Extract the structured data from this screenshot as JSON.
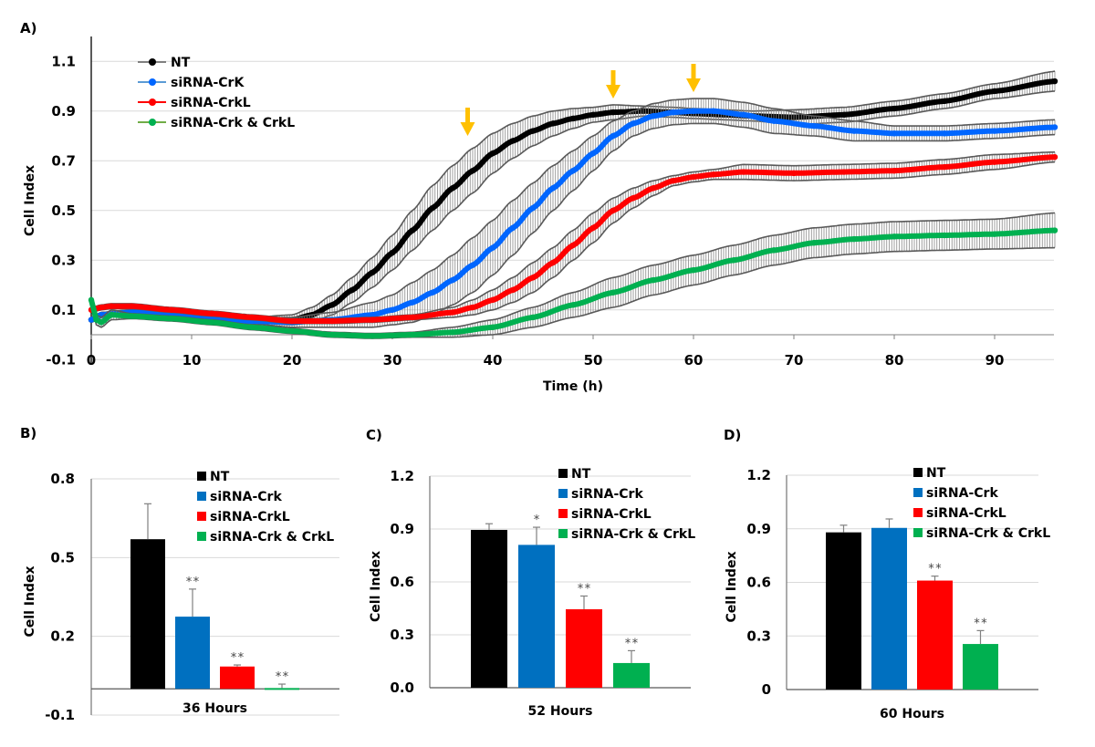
{
  "chart_data": [
    {
      "panel": "A)",
      "type": "line",
      "title": "",
      "xlabel": "Time (h)",
      "ylabel": "Cell Index",
      "xlim": [
        0,
        96
      ],
      "ylim": [
        -0.1,
        1.2
      ],
      "xticks": [
        "0",
        "10",
        "20",
        "30",
        "40",
        "50",
        "60",
        "70",
        "80",
        "90"
      ],
      "yticks": [
        "1.1",
        "0.9",
        "0.7",
        "0.5",
        "0.3",
        "0.1",
        "-0.1"
      ],
      "grid": true,
      "legend_position": "top-left",
      "error_bars": true,
      "annotations": [
        {
          "type": "arrow",
          "x": 37.5,
          "color": "#FFC000"
        },
        {
          "type": "arrow",
          "x": 52,
          "color": "#FFC000"
        },
        {
          "type": "arrow",
          "x": 60,
          "color": "#FFC000"
        }
      ],
      "series": [
        {
          "name": "NT",
          "color": "#000000",
          "legend_line_color": "#808080",
          "x": [
            0,
            1,
            4,
            8,
            12,
            16,
            20,
            22,
            24,
            26,
            28,
            30,
            32,
            34,
            36,
            38,
            40,
            42,
            44,
            46,
            48,
            50,
            52,
            55,
            58,
            60,
            63,
            66,
            70,
            75,
            80,
            85,
            90,
            96
          ],
          "y": [
            0.06,
            0.08,
            0.09,
            0.085,
            0.07,
            0.06,
            0.06,
            0.08,
            0.12,
            0.18,
            0.25,
            0.33,
            0.42,
            0.51,
            0.59,
            0.66,
            0.73,
            0.78,
            0.82,
            0.85,
            0.87,
            0.885,
            0.895,
            0.9,
            0.895,
            0.89,
            0.885,
            0.88,
            0.875,
            0.885,
            0.91,
            0.94,
            0.98,
            1.02
          ],
          "err": [
            0.01,
            0.01,
            0.01,
            0.01,
            0.01,
            0.01,
            0.02,
            0.03,
            0.04,
            0.05,
            0.06,
            0.07,
            0.08,
            0.09,
            0.09,
            0.09,
            0.08,
            0.07,
            0.06,
            0.05,
            0.04,
            0.03,
            0.03,
            0.02,
            0.02,
            0.02,
            0.02,
            0.02,
            0.03,
            0.03,
            0.03,
            0.03,
            0.03,
            0.04
          ]
        },
        {
          "name": "siRNA-CrK",
          "color": "#0066FF",
          "legend_line_color": "#5B9BD5",
          "x": [
            0,
            1,
            4,
            8,
            12,
            16,
            20,
            24,
            28,
            30,
            32,
            34,
            36,
            38,
            40,
            42,
            44,
            46,
            48,
            50,
            52,
            54,
            56,
            58,
            60,
            62,
            65,
            68,
            72,
            76,
            80,
            85,
            90,
            96
          ],
          "y": [
            0.06,
            0.08,
            0.09,
            0.085,
            0.07,
            0.055,
            0.05,
            0.06,
            0.08,
            0.1,
            0.13,
            0.17,
            0.22,
            0.28,
            0.35,
            0.43,
            0.51,
            0.59,
            0.66,
            0.73,
            0.8,
            0.85,
            0.88,
            0.895,
            0.9,
            0.9,
            0.885,
            0.86,
            0.84,
            0.82,
            0.81,
            0.81,
            0.82,
            0.835
          ],
          "err": [
            0.01,
            0.01,
            0.01,
            0.01,
            0.01,
            0.01,
            0.02,
            0.03,
            0.05,
            0.06,
            0.08,
            0.09,
            0.1,
            0.11,
            0.11,
            0.11,
            0.1,
            0.09,
            0.08,
            0.07,
            0.06,
            0.05,
            0.05,
            0.05,
            0.05,
            0.05,
            0.05,
            0.05,
            0.04,
            0.04,
            0.03,
            0.03,
            0.03,
            0.03
          ]
        },
        {
          "name": "siRNA-CrkL",
          "color": "#FF0000",
          "legend_line_color": "#FF0000",
          "x": [
            0,
            1,
            2,
            4,
            8,
            12,
            16,
            20,
            24,
            28,
            32,
            36,
            38,
            40,
            42,
            44,
            46,
            48,
            50,
            52,
            54,
            56,
            58,
            60,
            62,
            65,
            70,
            75,
            80,
            85,
            90,
            96
          ],
          "y": [
            0.1,
            0.11,
            0.115,
            0.115,
            0.1,
            0.085,
            0.07,
            0.055,
            0.055,
            0.06,
            0.07,
            0.09,
            0.11,
            0.14,
            0.18,
            0.23,
            0.29,
            0.36,
            0.43,
            0.5,
            0.55,
            0.59,
            0.62,
            0.635,
            0.645,
            0.655,
            0.65,
            0.655,
            0.66,
            0.675,
            0.695,
            0.715
          ],
          "err": [
            0.01,
            0.01,
            0.01,
            0.01,
            0.01,
            0.01,
            0.01,
            0.01,
            0.01,
            0.01,
            0.01,
            0.02,
            0.03,
            0.04,
            0.05,
            0.06,
            0.06,
            0.06,
            0.06,
            0.05,
            0.04,
            0.03,
            0.02,
            0.02,
            0.02,
            0.03,
            0.03,
            0.03,
            0.03,
            0.03,
            0.03,
            0.02
          ]
        },
        {
          "name": "siRNA-Crk & CrkL",
          "color": "#00B050",
          "legend_line_color": "#70AD47",
          "x": [
            0,
            0.5,
            1,
            2,
            4,
            8,
            12,
            16,
            20,
            24,
            28,
            32,
            36,
            40,
            44,
            48,
            52,
            56,
            60,
            64,
            68,
            72,
            76,
            80,
            85,
            90,
            96
          ],
          "y": [
            0.14,
            0.06,
            0.05,
            0.08,
            0.075,
            0.065,
            0.05,
            0.03,
            0.015,
            0.0,
            -0.005,
            0.0,
            0.01,
            0.03,
            0.07,
            0.12,
            0.17,
            0.22,
            0.26,
            0.3,
            0.34,
            0.37,
            0.385,
            0.395,
            0.4,
            0.405,
            0.42
          ],
          "err": [
            0.01,
            0.02,
            0.02,
            0.02,
            0.01,
            0.01,
            0.01,
            0.01,
            0.01,
            0.01,
            0.01,
            0.01,
            0.02,
            0.03,
            0.04,
            0.05,
            0.06,
            0.06,
            0.06,
            0.06,
            0.06,
            0.06,
            0.06,
            0.06,
            0.06,
            0.06,
            0.07
          ]
        }
      ]
    },
    {
      "panel": "B)",
      "type": "bar",
      "categories": [
        "36 Hours"
      ],
      "xlabel": "36 Hours",
      "ylabel": "Cell Index",
      "ylim": [
        -0.1,
        0.8
      ],
      "yticks": [
        "0.8",
        "0.5",
        "0.2",
        "-0.1"
      ],
      "ytick_values": [
        0.8,
        0.5,
        0.2,
        -0.1
      ],
      "grid": true,
      "legend_position": "top-right",
      "series": [
        {
          "name": "NT",
          "color": "#000000",
          "value": 0.57,
          "err": 0.135,
          "sig": ""
        },
        {
          "name": "siRNA-Crk",
          "color": "#0070C0",
          "value": 0.275,
          "err": 0.105,
          "sig": "**"
        },
        {
          "name": "siRNA-CrkL",
          "color": "#FF0000",
          "value": 0.085,
          "err": 0.006,
          "sig": "**"
        },
        {
          "name": "siRNA-Crk & CrkL",
          "color": "#00B050",
          "value": 0.003,
          "err": 0.015,
          "sig": "**"
        }
      ]
    },
    {
      "panel": "C)",
      "type": "bar",
      "categories": [
        "52 Hours"
      ],
      "xlabel": "52 Hours",
      "ylabel": "Cell Index",
      "ylim": [
        0,
        1.2
      ],
      "yticks": [
        "1.2",
        "0.9",
        "0.6",
        "0.3",
        "0.0"
      ],
      "ytick_values": [
        1.2,
        0.9,
        0.6,
        0.3,
        0.0
      ],
      "grid": true,
      "legend_position": "top-right",
      "series": [
        {
          "name": "NT",
          "color": "#000000",
          "value": 0.895,
          "err": 0.035,
          "sig": ""
        },
        {
          "name": "siRNA-Crk",
          "color": "#0070C0",
          "value": 0.81,
          "err": 0.1,
          "sig": "*"
        },
        {
          "name": "siRNA-CrkL",
          "color": "#FF0000",
          "value": 0.445,
          "err": 0.075,
          "sig": "**"
        },
        {
          "name": "siRNA-Crk & CrkL",
          "color": "#00B050",
          "value": 0.14,
          "err": 0.07,
          "sig": "**"
        }
      ]
    },
    {
      "panel": "D)",
      "type": "bar",
      "categories": [
        "60 Hours"
      ],
      "xlabel": "60 Hours",
      "ylabel": "Cell Index",
      "ylim": [
        0,
        1.2
      ],
      "yticks": [
        "1.2",
        "0.9",
        "0.6",
        "0.3",
        "0"
      ],
      "ytick_values": [
        1.2,
        0.9,
        0.6,
        0.3,
        0
      ],
      "grid": true,
      "legend_position": "top-right",
      "series": [
        {
          "name": "NT",
          "color": "#000000",
          "value": 0.88,
          "err": 0.04,
          "sig": ""
        },
        {
          "name": "siRNA-Crk",
          "color": "#0070C0",
          "value": 0.905,
          "err": 0.05,
          "sig": ""
        },
        {
          "name": "siRNA-CrkL",
          "color": "#FF0000",
          "value": 0.61,
          "err": 0.025,
          "sig": "**"
        },
        {
          "name": "siRNA-Crk & CrkL",
          "color": "#00B050",
          "value": 0.255,
          "err": 0.075,
          "sig": "**"
        }
      ]
    }
  ]
}
